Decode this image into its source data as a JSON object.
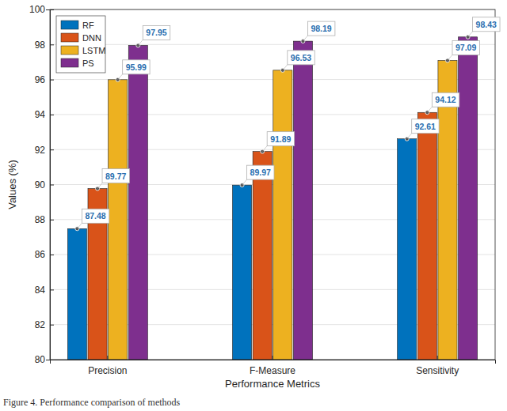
{
  "chart_data": {
    "type": "bar",
    "caption": "Figure 4. Performance comparison of methods",
    "x_label": "Performance Metrics",
    "y_label": "Values (%)",
    "categories": [
      "Precision",
      "F-Measure",
      "Sensitivity"
    ],
    "series": [
      {
        "name": "RF",
        "color": "#0072bd",
        "values": [
          87.48,
          89.97,
          92.61
        ]
      },
      {
        "name": "DNN",
        "color": "#d95319",
        "values": [
          89.77,
          91.89,
          94.12
        ]
      },
      {
        "name": "LSTM",
        "color": "#edb120",
        "values": [
          95.99,
          96.53,
          97.09
        ]
      },
      {
        "name": "PS",
        "color": "#7e2f8e",
        "values": [
          97.95,
          98.19,
          98.43
        ]
      }
    ],
    "ylim": [
      80,
      100
    ],
    "yticks": [
      80,
      82,
      84,
      86,
      88,
      90,
      92,
      94,
      96,
      98,
      100
    ],
    "grid": true,
    "data_labels": true,
    "legend": "upper left"
  }
}
